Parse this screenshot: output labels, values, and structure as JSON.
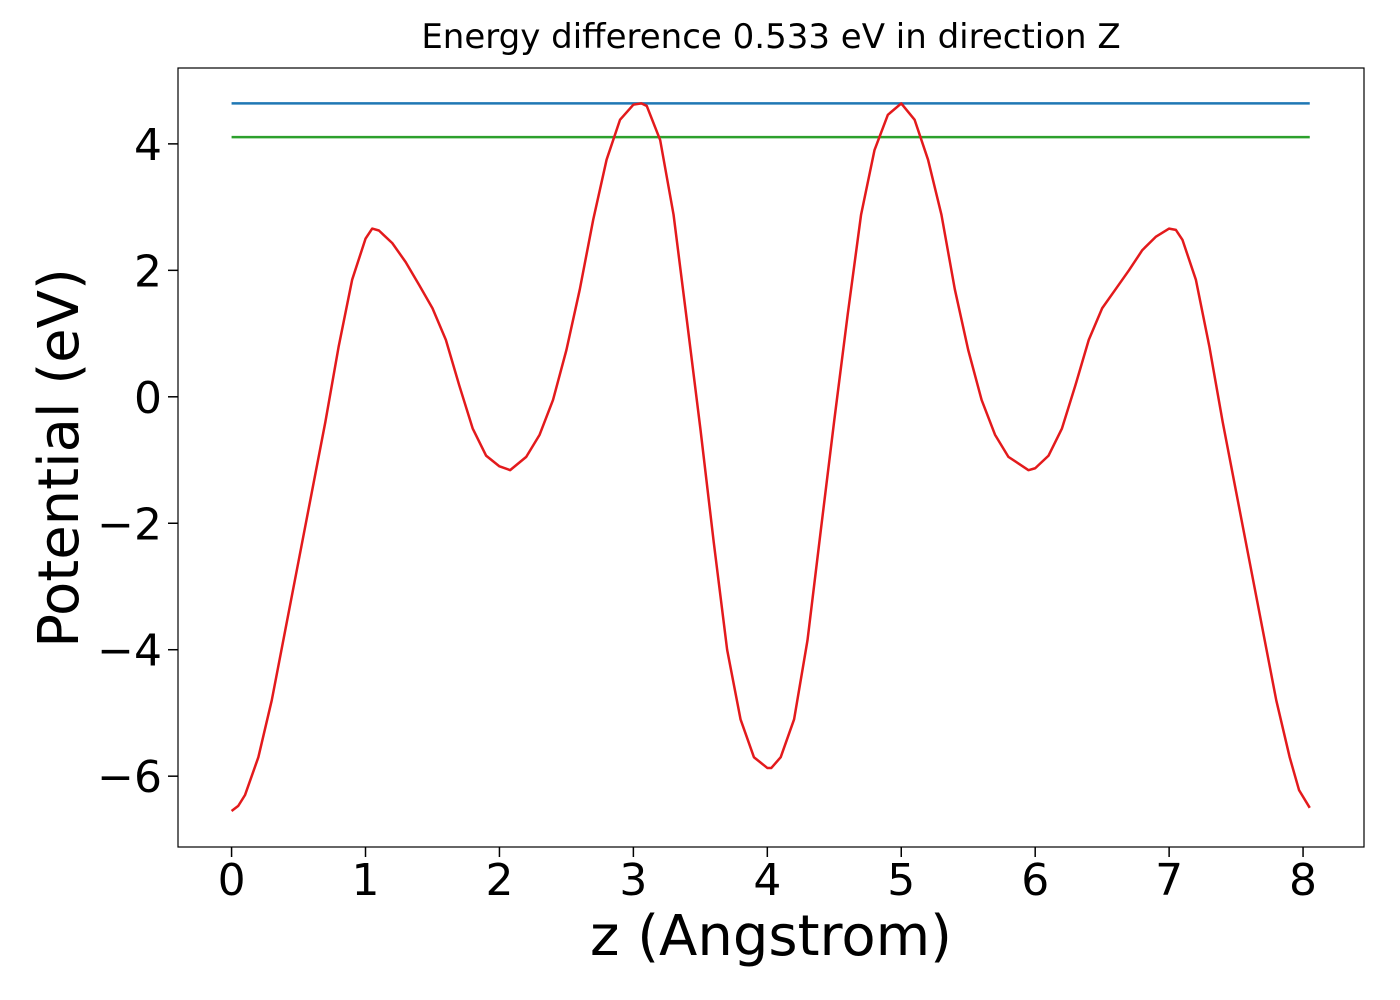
{
  "chart_data": {
    "type": "line",
    "title": "Energy difference 0.533 eV in direction Z",
    "xlabel": "z (Angstrom)",
    "ylabel": "Potential (eV)",
    "xlim": [
      -0.4,
      8.455
    ],
    "ylim": [
      -7.12,
      5.2
    ],
    "xticks": [
      0,
      1,
      2,
      3,
      4,
      5,
      6,
      7,
      8
    ],
    "yticks": [
      {
        "value": -6,
        "label": "−6"
      },
      {
        "value": -4,
        "label": "−4"
      },
      {
        "value": -2,
        "label": "−2"
      },
      0,
      2,
      4
    ],
    "grid": false,
    "series": [
      {
        "color": "#1f77b4",
        "x": [
          0,
          8.05
        ],
        "values": [
          4.64,
          4.64
        ]
      },
      {
        "color": "#2ca02c",
        "x": [
          0,
          8.05
        ],
        "values": [
          4.107,
          4.107
        ]
      },
      {
        "color": "#e31a1c",
        "x": [
          0,
          0.05,
          0.1,
          0.2,
          0.3,
          0.4,
          0.5,
          0.6,
          0.7,
          0.8,
          0.9,
          1.0,
          1.05,
          1.1,
          1.2,
          1.3,
          1.4,
          1.5,
          1.6,
          1.7,
          1.8,
          1.9,
          2.0,
          2.08,
          2.2,
          2.3,
          2.4,
          2.5,
          2.6,
          2.7,
          2.8,
          2.9,
          3.0,
          3.06,
          3.1,
          3.2,
          3.3,
          3.4,
          3.5,
          3.6,
          3.7,
          3.8,
          3.9,
          4.0,
          4.03,
          4.1,
          4.2,
          4.3,
          4.4,
          4.5,
          4.6,
          4.7,
          4.8,
          4.9,
          5.0,
          5.1,
          5.2,
          5.3,
          5.4,
          5.5,
          5.6,
          5.7,
          5.8,
          5.95,
          6.0,
          6.1,
          6.2,
          6.3,
          6.4,
          6.5,
          6.6,
          6.7,
          6.8,
          6.9,
          7.0,
          7.05,
          7.1,
          7.2,
          7.3,
          7.4,
          7.5,
          7.6,
          7.7,
          7.8,
          7.9,
          7.97,
          8.05
        ],
        "values": [
          -6.55,
          -6.47,
          -6.3,
          -5.7,
          -4.8,
          -3.7,
          -2.6,
          -1.5,
          -0.4,
          0.8,
          1.85,
          2.5,
          2.66,
          2.63,
          2.43,
          2.13,
          1.77,
          1.4,
          0.9,
          0.18,
          -0.5,
          -0.93,
          -1.1,
          -1.16,
          -0.95,
          -0.6,
          -0.05,
          0.74,
          1.7,
          2.8,
          3.75,
          4.38,
          4.62,
          4.64,
          4.6,
          4.06,
          2.88,
          1.2,
          -0.5,
          -2.3,
          -4.0,
          -5.1,
          -5.7,
          -5.87,
          -5.87,
          -5.7,
          -5.1,
          -3.85,
          -2.1,
          -0.37,
          1.3,
          2.88,
          3.9,
          4.46,
          4.64,
          4.38,
          3.75,
          2.88,
          1.7,
          0.74,
          -0.05,
          -0.6,
          -0.95,
          -1.16,
          -1.13,
          -0.93,
          -0.5,
          0.18,
          0.9,
          1.4,
          1.7,
          2.0,
          2.32,
          2.53,
          2.66,
          2.64,
          2.48,
          1.85,
          0.8,
          -0.4,
          -1.5,
          -2.6,
          -3.7,
          -4.8,
          -5.7,
          -6.22,
          -6.5
        ]
      }
    ]
  }
}
